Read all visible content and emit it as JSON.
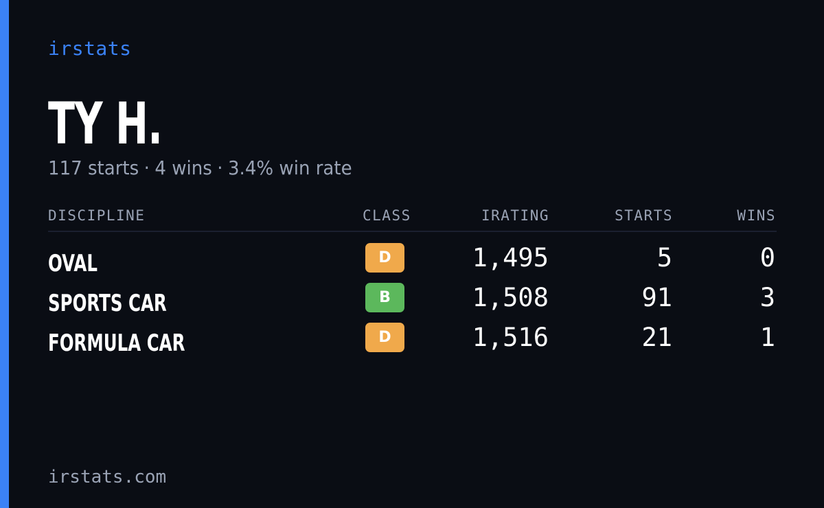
{
  "brand": "irstats",
  "driver": {
    "name": "TY H."
  },
  "summary": {
    "starts": "117 starts",
    "wins": "4 wins",
    "win_rate": "3.4% win rate",
    "separator": "·"
  },
  "table": {
    "headers": {
      "discipline": "DISCIPLINE",
      "class": "CLASS",
      "irating": "IRATING",
      "starts": "STARTS",
      "wins": "WINS"
    },
    "rows": [
      {
        "discipline": "OVAL",
        "class": "D",
        "class_color": "#f0a94b",
        "irating": "1,495",
        "starts": "5",
        "wins": "0"
      },
      {
        "discipline": "SPORTS CAR",
        "class": "B",
        "class_color": "#5cb85c",
        "irating": "1,508",
        "starts": "91",
        "wins": "3"
      },
      {
        "discipline": "FORMULA CAR",
        "class": "D",
        "class_color": "#f0a94b",
        "irating": "1,516",
        "starts": "21",
        "wins": "1"
      }
    ]
  },
  "footer": {
    "url": "irstats.com"
  },
  "colors": {
    "accent": "#3b82f6",
    "background": "#0a0d14",
    "muted_text": "#9aa3b5"
  }
}
